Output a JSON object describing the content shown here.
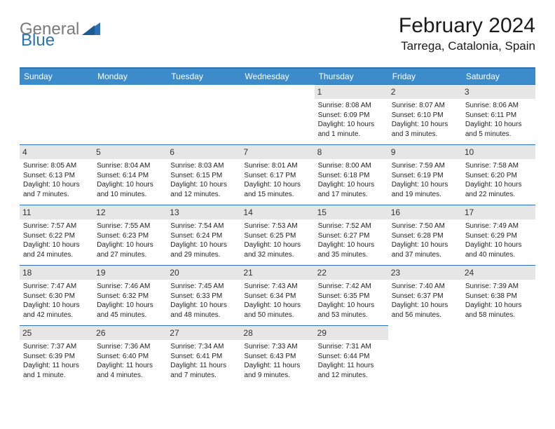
{
  "logo": {
    "general": "General",
    "blue": "Blue"
  },
  "title": "February 2024",
  "location": "Tarrega, Catalonia, Spain",
  "colors": {
    "header_bg": "#3c8ccc",
    "row_border": "#2a72b5",
    "daynum_bg": "#e6e6e6",
    "logo_gray": "#7a7a7a",
    "logo_blue": "#2a72b5"
  },
  "weekdays": [
    "Sunday",
    "Monday",
    "Tuesday",
    "Wednesday",
    "Thursday",
    "Friday",
    "Saturday"
  ],
  "weeks": [
    [
      {
        "n": "",
        "sr": "",
        "ss": "",
        "dl": ""
      },
      {
        "n": "",
        "sr": "",
        "ss": "",
        "dl": ""
      },
      {
        "n": "",
        "sr": "",
        "ss": "",
        "dl": ""
      },
      {
        "n": "",
        "sr": "",
        "ss": "",
        "dl": ""
      },
      {
        "n": "1",
        "sr": "Sunrise: 8:08 AM",
        "ss": "Sunset: 6:09 PM",
        "dl": "Daylight: 10 hours and 1 minute."
      },
      {
        "n": "2",
        "sr": "Sunrise: 8:07 AM",
        "ss": "Sunset: 6:10 PM",
        "dl": "Daylight: 10 hours and 3 minutes."
      },
      {
        "n": "3",
        "sr": "Sunrise: 8:06 AM",
        "ss": "Sunset: 6:11 PM",
        "dl": "Daylight: 10 hours and 5 minutes."
      }
    ],
    [
      {
        "n": "4",
        "sr": "Sunrise: 8:05 AM",
        "ss": "Sunset: 6:13 PM",
        "dl": "Daylight: 10 hours and 7 minutes."
      },
      {
        "n": "5",
        "sr": "Sunrise: 8:04 AM",
        "ss": "Sunset: 6:14 PM",
        "dl": "Daylight: 10 hours and 10 minutes."
      },
      {
        "n": "6",
        "sr": "Sunrise: 8:03 AM",
        "ss": "Sunset: 6:15 PM",
        "dl": "Daylight: 10 hours and 12 minutes."
      },
      {
        "n": "7",
        "sr": "Sunrise: 8:01 AM",
        "ss": "Sunset: 6:17 PM",
        "dl": "Daylight: 10 hours and 15 minutes."
      },
      {
        "n": "8",
        "sr": "Sunrise: 8:00 AM",
        "ss": "Sunset: 6:18 PM",
        "dl": "Daylight: 10 hours and 17 minutes."
      },
      {
        "n": "9",
        "sr": "Sunrise: 7:59 AM",
        "ss": "Sunset: 6:19 PM",
        "dl": "Daylight: 10 hours and 19 minutes."
      },
      {
        "n": "10",
        "sr": "Sunrise: 7:58 AM",
        "ss": "Sunset: 6:20 PM",
        "dl": "Daylight: 10 hours and 22 minutes."
      }
    ],
    [
      {
        "n": "11",
        "sr": "Sunrise: 7:57 AM",
        "ss": "Sunset: 6:22 PM",
        "dl": "Daylight: 10 hours and 24 minutes."
      },
      {
        "n": "12",
        "sr": "Sunrise: 7:55 AM",
        "ss": "Sunset: 6:23 PM",
        "dl": "Daylight: 10 hours and 27 minutes."
      },
      {
        "n": "13",
        "sr": "Sunrise: 7:54 AM",
        "ss": "Sunset: 6:24 PM",
        "dl": "Daylight: 10 hours and 29 minutes."
      },
      {
        "n": "14",
        "sr": "Sunrise: 7:53 AM",
        "ss": "Sunset: 6:25 PM",
        "dl": "Daylight: 10 hours and 32 minutes."
      },
      {
        "n": "15",
        "sr": "Sunrise: 7:52 AM",
        "ss": "Sunset: 6:27 PM",
        "dl": "Daylight: 10 hours and 35 minutes."
      },
      {
        "n": "16",
        "sr": "Sunrise: 7:50 AM",
        "ss": "Sunset: 6:28 PM",
        "dl": "Daylight: 10 hours and 37 minutes."
      },
      {
        "n": "17",
        "sr": "Sunrise: 7:49 AM",
        "ss": "Sunset: 6:29 PM",
        "dl": "Daylight: 10 hours and 40 minutes."
      }
    ],
    [
      {
        "n": "18",
        "sr": "Sunrise: 7:47 AM",
        "ss": "Sunset: 6:30 PM",
        "dl": "Daylight: 10 hours and 42 minutes."
      },
      {
        "n": "19",
        "sr": "Sunrise: 7:46 AM",
        "ss": "Sunset: 6:32 PM",
        "dl": "Daylight: 10 hours and 45 minutes."
      },
      {
        "n": "20",
        "sr": "Sunrise: 7:45 AM",
        "ss": "Sunset: 6:33 PM",
        "dl": "Daylight: 10 hours and 48 minutes."
      },
      {
        "n": "21",
        "sr": "Sunrise: 7:43 AM",
        "ss": "Sunset: 6:34 PM",
        "dl": "Daylight: 10 hours and 50 minutes."
      },
      {
        "n": "22",
        "sr": "Sunrise: 7:42 AM",
        "ss": "Sunset: 6:35 PM",
        "dl": "Daylight: 10 hours and 53 minutes."
      },
      {
        "n": "23",
        "sr": "Sunrise: 7:40 AM",
        "ss": "Sunset: 6:37 PM",
        "dl": "Daylight: 10 hours and 56 minutes."
      },
      {
        "n": "24",
        "sr": "Sunrise: 7:39 AM",
        "ss": "Sunset: 6:38 PM",
        "dl": "Daylight: 10 hours and 58 minutes."
      }
    ],
    [
      {
        "n": "25",
        "sr": "Sunrise: 7:37 AM",
        "ss": "Sunset: 6:39 PM",
        "dl": "Daylight: 11 hours and 1 minute."
      },
      {
        "n": "26",
        "sr": "Sunrise: 7:36 AM",
        "ss": "Sunset: 6:40 PM",
        "dl": "Daylight: 11 hours and 4 minutes."
      },
      {
        "n": "27",
        "sr": "Sunrise: 7:34 AM",
        "ss": "Sunset: 6:41 PM",
        "dl": "Daylight: 11 hours and 7 minutes."
      },
      {
        "n": "28",
        "sr": "Sunrise: 7:33 AM",
        "ss": "Sunset: 6:43 PM",
        "dl": "Daylight: 11 hours and 9 minutes."
      },
      {
        "n": "29",
        "sr": "Sunrise: 7:31 AM",
        "ss": "Sunset: 6:44 PM",
        "dl": "Daylight: 11 hours and 12 minutes."
      },
      {
        "n": "",
        "sr": "",
        "ss": "",
        "dl": ""
      },
      {
        "n": "",
        "sr": "",
        "ss": "",
        "dl": ""
      }
    ]
  ]
}
